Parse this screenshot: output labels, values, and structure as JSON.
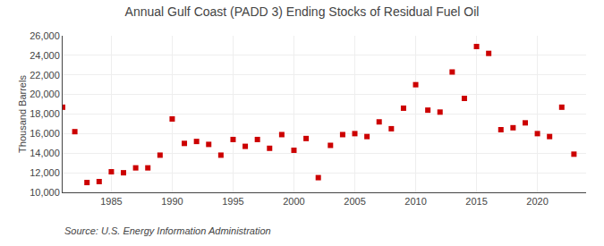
{
  "chart_data": {
    "type": "scatter",
    "title": "Annual Gulf Coast (PADD 3) Ending Stocks of Residual Fuel Oil",
    "ylabel": "Thousand Barrels",
    "annotations": [
      "Source: U.S. Energy Information Administration"
    ],
    "x": [
      1981,
      1982,
      1983,
      1984,
      1985,
      1986,
      1987,
      1988,
      1989,
      1990,
      1991,
      1992,
      1993,
      1994,
      1995,
      1996,
      1997,
      1998,
      1999,
      2000,
      2001,
      2002,
      2003,
      2004,
      2005,
      2006,
      2007,
      2008,
      2009,
      2010,
      2011,
      2012,
      2013,
      2014,
      2015,
      2016,
      2017,
      2018,
      2019,
      2020,
      2021,
      2022,
      2023
    ],
    "values": [
      18700,
      16200,
      11000,
      11100,
      12100,
      12000,
      12500,
      12500,
      13800,
      17500,
      15000,
      15200,
      14900,
      13800,
      15400,
      14700,
      15400,
      14500,
      15900,
      14300,
      15500,
      11500,
      14800,
      15900,
      16000,
      15700,
      17200,
      16500,
      18600,
      21000,
      18400,
      18200,
      22300,
      19600,
      24900,
      24200,
      16400,
      16600,
      17100,
      16000,
      15700,
      18700,
      13900
    ],
    "color": "#cc0000",
    "marker": "square",
    "xlim": [
      1981,
      2024
    ],
    "xticks": [
      1985,
      1990,
      1995,
      2000,
      2005,
      2010,
      2015,
      2020
    ],
    "ylim": [
      10000,
      26000
    ],
    "yticks": [
      {
        "value": 10000,
        "label": "10,000"
      },
      {
        "value": 12000,
        "label": "12,000"
      },
      {
        "value": 14000,
        "label": "14,000"
      },
      {
        "value": 16000,
        "label": "16,000"
      },
      {
        "value": 18000,
        "label": "18,000"
      },
      {
        "value": 20000,
        "label": "20,000"
      },
      {
        "value": 22000,
        "label": "22,000"
      },
      {
        "value": 24000,
        "label": "24,000"
      },
      {
        "value": 26000,
        "label": "26,000"
      }
    ],
    "grid": true
  }
}
